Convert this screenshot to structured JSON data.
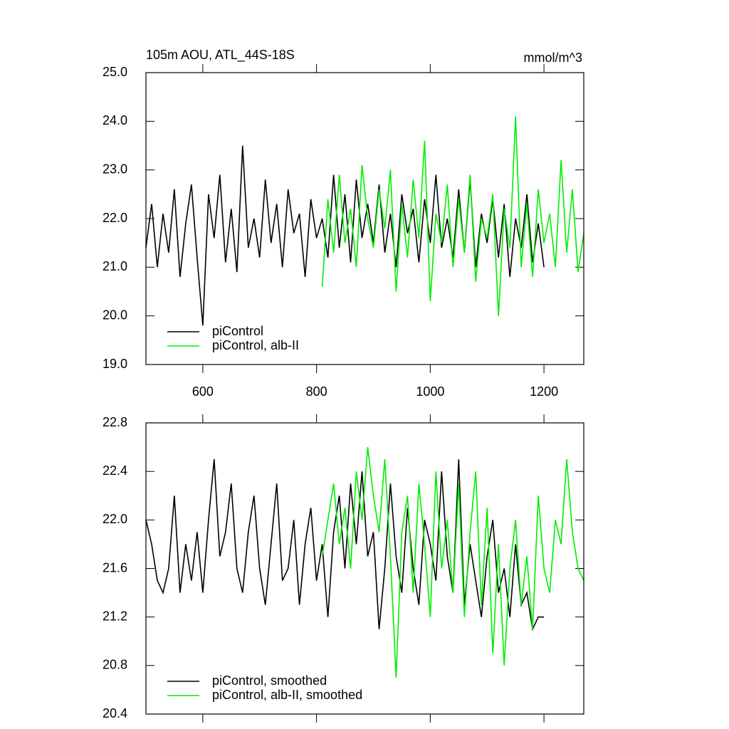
{
  "chart_data": [
    {
      "type": "line",
      "title": "105m AOU, ATL_44S-18S",
      "units": "mmol/m^3",
      "legend": "lower left",
      "xlim": [
        500,
        1270
      ],
      "xticks": [
        600,
        800,
        1000,
        1200
      ],
      "xtick_labels": true,
      "ylim": [
        19.0,
        25.0
      ],
      "yticks": [
        {
          "value": 19,
          "label": "19.0"
        },
        {
          "value": 20,
          "label": "20.0"
        },
        {
          "value": 21,
          "label": "21.0"
        },
        {
          "value": 22,
          "label": "22.0"
        },
        {
          "value": 23,
          "label": "23.0"
        },
        {
          "value": 24,
          "label": "24.0"
        },
        {
          "value": 25,
          "label": "25.0"
        }
      ],
      "series": [
        {
          "name": "piControl",
          "color": "#000000",
          "x": [
            500,
            510,
            520,
            530,
            540,
            550,
            560,
            570,
            580,
            590,
            600,
            610,
            620,
            630,
            640,
            650,
            660,
            670,
            680,
            690,
            700,
            710,
            720,
            730,
            740,
            750,
            760,
            770,
            780,
            790,
            800,
            810,
            820,
            830,
            840,
            850,
            860,
            870,
            880,
            890,
            900,
            910,
            920,
            930,
            940,
            950,
            960,
            970,
            980,
            990,
            1000,
            1010,
            1020,
            1030,
            1040,
            1050,
            1060,
            1070,
            1080,
            1090,
            1100,
            1110,
            1120,
            1130,
            1140,
            1150,
            1160,
            1170,
            1180,
            1190,
            1200
          ],
          "values": [
            21.4,
            22.3,
            21.0,
            22.1,
            21.3,
            22.6,
            20.8,
            21.9,
            22.7,
            21.2,
            19.8,
            22.5,
            21.6,
            22.9,
            21.1,
            22.2,
            20.9,
            23.5,
            21.4,
            22.0,
            21.2,
            22.8,
            21.5,
            22.3,
            21.0,
            22.6,
            21.7,
            22.1,
            20.8,
            22.4,
            21.6,
            22.0,
            21.2,
            22.9,
            21.4,
            22.5,
            21.1,
            22.8,
            21.6,
            22.3,
            21.5,
            22.7,
            21.3,
            22.1,
            21.0,
            22.5,
            21.7,
            22.2,
            21.1,
            22.4,
            21.5,
            22.9,
            21.4,
            22.0,
            21.2,
            22.6,
            21.3,
            22.8,
            21.0,
            22.1,
            21.5,
            22.4,
            21.2,
            22.3,
            20.8,
            22.0,
            21.4,
            22.5,
            21.1,
            21.9,
            21.0
          ]
        },
        {
          "name": "piControl, alb-II",
          "color": "#00ee00",
          "x": [
            810,
            820,
            830,
            840,
            850,
            860,
            870,
            880,
            890,
            900,
            910,
            920,
            930,
            940,
            950,
            960,
            970,
            980,
            990,
            1000,
            1010,
            1020,
            1030,
            1040,
            1050,
            1060,
            1070,
            1080,
            1090,
            1100,
            1110,
            1120,
            1130,
            1140,
            1150,
            1160,
            1170,
            1180,
            1190,
            1200,
            1210,
            1220,
            1230,
            1240,
            1250,
            1260,
            1270
          ],
          "values": [
            20.6,
            22.4,
            21.3,
            22.9,
            21.5,
            22.2,
            21.0,
            23.1,
            22.0,
            21.4,
            22.6,
            21.8,
            23.0,
            20.5,
            22.3,
            21.2,
            22.8,
            21.6,
            23.6,
            20.3,
            22.1,
            21.5,
            22.7,
            21.0,
            22.4,
            21.3,
            22.9,
            20.7,
            22.0,
            21.6,
            22.5,
            20.0,
            22.2,
            21.4,
            24.1,
            21.0,
            22.3,
            20.8,
            22.6,
            21.5,
            22.1,
            21.0,
            23.2,
            21.3,
            22.6,
            20.9,
            21.7
          ]
        }
      ]
    },
    {
      "type": "line",
      "legend": "lower left",
      "xlim": [
        500,
        1270
      ],
      "xticks": [
        600,
        800,
        1000,
        1200
      ],
      "xtick_labels": false,
      "ylim": [
        20.4,
        22.8
      ],
      "yticks": [
        20.4,
        20.8,
        21.2,
        21.6,
        {
          "value": 22,
          "label": "22.0"
        },
        22.4,
        22.8
      ],
      "series": [
        {
          "name": "piControl, smoothed",
          "color": "#000000",
          "x": [
            500,
            510,
            520,
            530,
            540,
            550,
            560,
            570,
            580,
            590,
            600,
            610,
            620,
            630,
            640,
            650,
            660,
            670,
            680,
            690,
            700,
            710,
            720,
            730,
            740,
            750,
            760,
            770,
            780,
            790,
            800,
            810,
            820,
            830,
            840,
            850,
            860,
            870,
            880,
            890,
            900,
            910,
            920,
            930,
            940,
            950,
            960,
            970,
            980,
            990,
            1000,
            1010,
            1020,
            1030,
            1040,
            1050,
            1060,
            1070,
            1080,
            1090,
            1100,
            1110,
            1120,
            1130,
            1140,
            1150,
            1160,
            1170,
            1180,
            1190,
            1200
          ],
          "values": [
            22.0,
            21.8,
            21.5,
            21.4,
            21.6,
            22.2,
            21.4,
            21.8,
            21.5,
            21.9,
            21.4,
            22.0,
            22.5,
            21.7,
            21.9,
            22.3,
            21.6,
            21.4,
            21.9,
            22.2,
            21.6,
            21.3,
            21.8,
            22.3,
            21.5,
            21.6,
            22.0,
            21.3,
            21.8,
            22.1,
            21.5,
            21.8,
            21.2,
            21.9,
            22.2,
            21.6,
            22.3,
            21.8,
            22.4,
            21.7,
            21.9,
            21.1,
            21.6,
            22.3,
            21.7,
            21.4,
            22.1,
            21.6,
            21.3,
            22.0,
            21.8,
            21.5,
            22.4,
            21.7,
            21.4,
            22.5,
            21.3,
            21.8,
            21.5,
            21.2,
            21.7,
            22.0,
            21.4,
            21.6,
            21.2,
            21.8,
            21.3,
            21.4,
            21.1,
            21.2,
            21.2
          ]
        },
        {
          "name": "piControl, alb-II, smoothed",
          "color": "#00ee00",
          "x": [
            810,
            820,
            830,
            840,
            850,
            860,
            870,
            880,
            890,
            900,
            910,
            920,
            930,
            940,
            950,
            960,
            970,
            980,
            990,
            1000,
            1010,
            1020,
            1030,
            1040,
            1050,
            1060,
            1070,
            1080,
            1090,
            1100,
            1110,
            1120,
            1130,
            1140,
            1150,
            1160,
            1170,
            1180,
            1190,
            1200,
            1210,
            1220,
            1230,
            1240,
            1250,
            1260,
            1270
          ],
          "values": [
            21.7,
            22.0,
            22.3,
            21.8,
            22.1,
            21.6,
            22.4,
            22.0,
            22.6,
            22.2,
            21.9,
            22.5,
            21.7,
            20.7,
            21.9,
            22.2,
            21.4,
            22.3,
            21.8,
            21.2,
            22.4,
            21.6,
            22.0,
            21.4,
            22.3,
            21.2,
            21.9,
            22.4,
            21.3,
            22.1,
            20.9,
            21.8,
            20.8,
            21.6,
            22.0,
            21.3,
            21.7,
            21.1,
            22.2,
            21.6,
            21.4,
            22.0,
            21.8,
            22.5,
            21.9,
            21.6,
            21.5
          ]
        }
      ]
    }
  ]
}
